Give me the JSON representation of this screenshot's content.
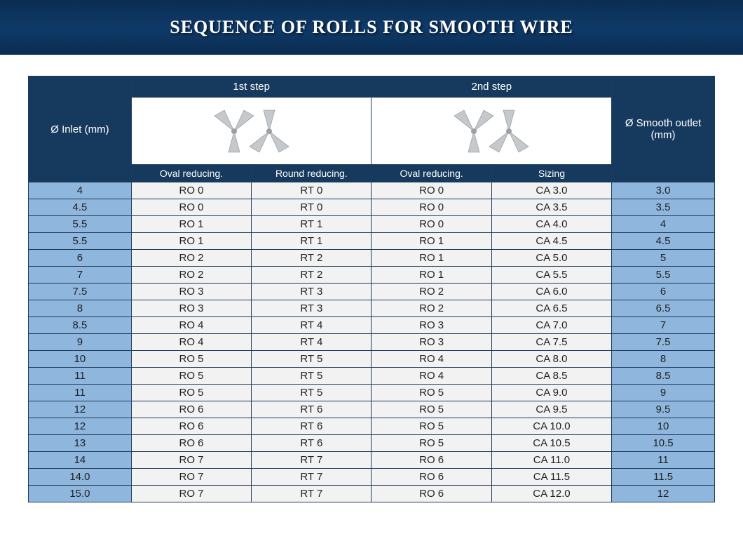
{
  "banner": {
    "title": "SEQUENCE OF ROLLS FOR SMOOTH WIRE"
  },
  "colors": {
    "banner_bg_top": "#0a2d52",
    "banner_bg_mid": "#0f3a68",
    "header_bg": "#163a5e",
    "header_text": "#ffffff",
    "row_blue": "#8fb6dd",
    "row_gray": "#f2f2f2",
    "border": "#1d3a5c",
    "text": "#222222"
  },
  "table": {
    "columns": {
      "inlet": "Ø Inlet (mm)",
      "step1": "1st step",
      "step2": "2nd step",
      "outlet": "Ø Smooth outlet (mm)",
      "sub": {
        "oval1": "Oval reducing.",
        "round1": "Round reducing.",
        "oval2": "Oval reducing.",
        "sizing": "Sizing"
      }
    },
    "icons": {
      "step1": "roll-pair-icon",
      "step2": "roll-pair-icon"
    },
    "rows": [
      {
        "inlet": "4",
        "oval1": "RO 0",
        "round1": "RT 0",
        "oval2": "RO 0",
        "sizing": "CA 3.0",
        "outlet": "3.0"
      },
      {
        "inlet": "4.5",
        "oval1": "RO 0",
        "round1": "RT 0",
        "oval2": "RO 0",
        "sizing": "CA 3.5",
        "outlet": "3.5"
      },
      {
        "inlet": "5.5",
        "oval1": "RO 1",
        "round1": "RT 1",
        "oval2": "RO 0",
        "sizing": "CA 4.0",
        "outlet": "4"
      },
      {
        "inlet": "5.5",
        "oval1": "RO 1",
        "round1": "RT 1",
        "oval2": "RO 1",
        "sizing": "CA 4.5",
        "outlet": "4.5"
      },
      {
        "inlet": "6",
        "oval1": "RO 2",
        "round1": "RT 2",
        "oval2": "RO 1",
        "sizing": "CA 5.0",
        "outlet": "5"
      },
      {
        "inlet": "7",
        "oval1": "RO 2",
        "round1": "RT 2",
        "oval2": "RO 1",
        "sizing": "CA 5.5",
        "outlet": "5.5"
      },
      {
        "inlet": "7.5",
        "oval1": "RO 3",
        "round1": "RT 3",
        "oval2": "RO 2",
        "sizing": "CA 6.0",
        "outlet": "6"
      },
      {
        "inlet": "8",
        "oval1": "RO 3",
        "round1": "RT 3",
        "oval2": "RO 2",
        "sizing": "CA 6.5",
        "outlet": "6.5"
      },
      {
        "inlet": "8.5",
        "oval1": "RO 4",
        "round1": "RT 4",
        "oval2": "RO 3",
        "sizing": "CA 7.0",
        "outlet": "7"
      },
      {
        "inlet": "9",
        "oval1": "RO 4",
        "round1": "RT 4",
        "oval2": "RO 3",
        "sizing": "CA 7.5",
        "outlet": "7.5"
      },
      {
        "inlet": "10",
        "oval1": "RO 5",
        "round1": "RT 5",
        "oval2": "RO 4",
        "sizing": "CA 8.0",
        "outlet": "8"
      },
      {
        "inlet": "11",
        "oval1": "RO 5",
        "round1": "RT 5",
        "oval2": "RO 4",
        "sizing": "CA 8.5",
        "outlet": "8.5"
      },
      {
        "inlet": "11",
        "oval1": "RO 5",
        "round1": "RT 5",
        "oval2": "RO 5",
        "sizing": "CA 9.0",
        "outlet": "9"
      },
      {
        "inlet": "12",
        "oval1": "RO 6",
        "round1": "RT 6",
        "oval2": "RO 5",
        "sizing": "CA 9.5",
        "outlet": "9.5"
      },
      {
        "inlet": "12",
        "oval1": "RO 6",
        "round1": "RT 6",
        "oval2": "RO 5",
        "sizing": "CA 10.0",
        "outlet": "10"
      },
      {
        "inlet": "13",
        "oval1": "RO 6",
        "round1": "RT 6",
        "oval2": "RO 5",
        "sizing": "CA 10.5",
        "outlet": "10.5"
      },
      {
        "inlet": "14",
        "oval1": "RO 7",
        "round1": "RT 7",
        "oval2": "RO 6",
        "sizing": "CA 11.0",
        "outlet": "11"
      },
      {
        "inlet": "14.0",
        "oval1": "RO 7",
        "round1": "RT 7",
        "oval2": "RO 6",
        "sizing": "CA 11.5",
        "outlet": "11.5"
      },
      {
        "inlet": "15.0",
        "oval1": "RO 7",
        "round1": "RT 7",
        "oval2": "RO 6",
        "sizing": "CA 12.0",
        "outlet": "12"
      }
    ]
  }
}
